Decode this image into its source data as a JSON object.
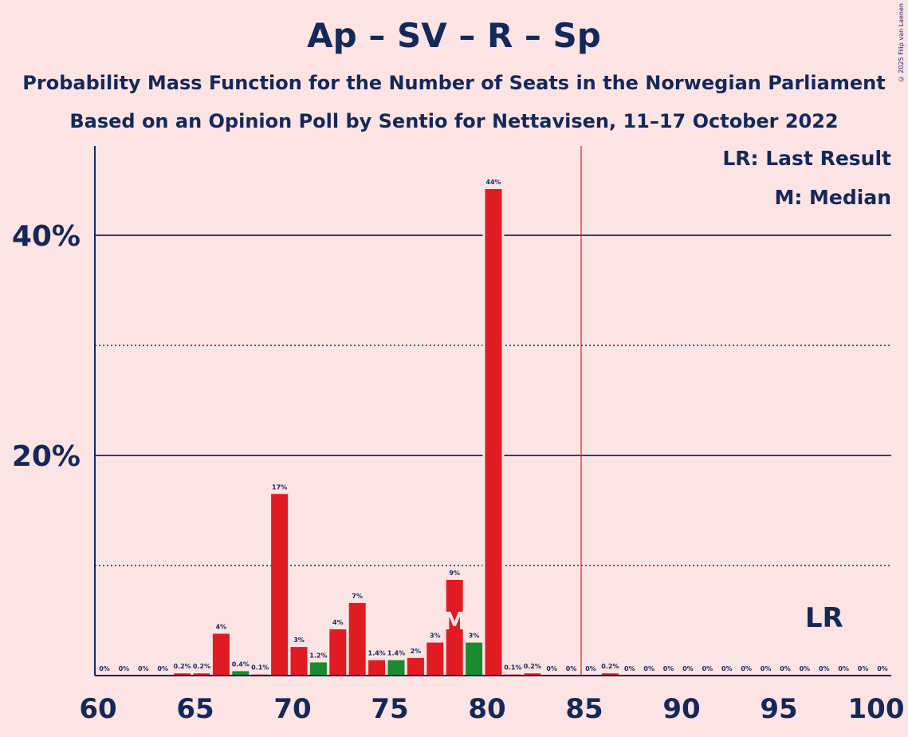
{
  "title": "Ap – SV – R – Sp",
  "subtitle1": "Probability Mass Function for the Number of Seats in the Norwegian Parliament",
  "subtitle2": "Based on an Opinion Poll by Sentio for Nettavisen, 11–17 October 2022",
  "copyright": "© 2025 Filip van Laenen",
  "legend": {
    "last_result": "LR: Last Result",
    "median": "M: Median"
  },
  "colors": {
    "background": "#fde4e4",
    "text": "#14285a",
    "bar": "#e01b22",
    "bar_alt": "#1a8a2e",
    "majority_line": "#e01b22"
  },
  "chart_data": {
    "type": "bar",
    "xlim": [
      60,
      100
    ],
    "ylim": [
      0,
      48
    ],
    "x_ticks": [
      60,
      65,
      70,
      75,
      80,
      85,
      90,
      95,
      100
    ],
    "y_ticks_labeled": [
      {
        "value": 20,
        "label": "20%"
      },
      {
        "value": 40,
        "label": "40%"
      }
    ],
    "y_ticks_dotted": [
      10,
      30
    ],
    "majority_line_x": 85,
    "median_x": 78,
    "median_label": "M",
    "last_result_x": 97,
    "last_result_label": "LR",
    "bars": [
      {
        "x": 60,
        "value": 0,
        "label": "0%",
        "green": false
      },
      {
        "x": 61,
        "value": 0,
        "label": "0%",
        "green": false
      },
      {
        "x": 62,
        "value": 0,
        "label": "0%",
        "green": false
      },
      {
        "x": 63,
        "value": 0,
        "label": "0%",
        "green": false
      },
      {
        "x": 64,
        "value": 0.2,
        "label": "0.2%",
        "green": false
      },
      {
        "x": 65,
        "value": 0.2,
        "label": "0.2%",
        "green": false
      },
      {
        "x": 66,
        "value": 3.8,
        "label": "4%",
        "green": false
      },
      {
        "x": 67,
        "value": 0.4,
        "label": "0.4%",
        "green": true
      },
      {
        "x": 68,
        "value": 0.1,
        "label": "0.1%",
        "green": false
      },
      {
        "x": 69,
        "value": 16.5,
        "label": "17%",
        "green": false
      },
      {
        "x": 70,
        "value": 2.6,
        "label": "3%",
        "green": false
      },
      {
        "x": 71,
        "value": 1.2,
        "label": "1.2%",
        "green": true
      },
      {
        "x": 72,
        "value": 4.2,
        "label": "4%",
        "green": false
      },
      {
        "x": 73,
        "value": 6.6,
        "label": "7%",
        "green": false
      },
      {
        "x": 74,
        "value": 1.4,
        "label": "1.4%",
        "green": false
      },
      {
        "x": 75,
        "value": 1.4,
        "label": "1.4%",
        "green": true
      },
      {
        "x": 76,
        "value": 1.6,
        "label": "2%",
        "green": false
      },
      {
        "x": 77,
        "value": 3.0,
        "label": "3%",
        "green": false
      },
      {
        "x": 78,
        "value": 8.7,
        "label": "9%",
        "green": false
      },
      {
        "x": 79,
        "value": 3.0,
        "label": "3%",
        "green": true
      },
      {
        "x": 80,
        "value": 44.2,
        "label": "44%",
        "green": false
      },
      {
        "x": 81,
        "value": 0.1,
        "label": "0.1%",
        "green": false
      },
      {
        "x": 82,
        "value": 0.2,
        "label": "0.2%",
        "green": false
      },
      {
        "x": 83,
        "value": 0,
        "label": "0%",
        "green": false
      },
      {
        "x": 84,
        "value": 0,
        "label": "0%",
        "green": false
      },
      {
        "x": 85,
        "value": 0,
        "label": "0%",
        "green": false
      },
      {
        "x": 86,
        "value": 0.2,
        "label": "0.2%",
        "green": false
      },
      {
        "x": 87,
        "value": 0,
        "label": "0%",
        "green": false
      },
      {
        "x": 88,
        "value": 0,
        "label": "0%",
        "green": false
      },
      {
        "x": 89,
        "value": 0,
        "label": "0%",
        "green": false
      },
      {
        "x": 90,
        "value": 0,
        "label": "0%",
        "green": false
      },
      {
        "x": 91,
        "value": 0,
        "label": "0%",
        "green": false
      },
      {
        "x": 92,
        "value": 0,
        "label": "0%",
        "green": false
      },
      {
        "x": 93,
        "value": 0,
        "label": "0%",
        "green": false
      },
      {
        "x": 94,
        "value": 0,
        "label": "0%",
        "green": false
      },
      {
        "x": 95,
        "value": 0,
        "label": "0%",
        "green": false
      },
      {
        "x": 96,
        "value": 0,
        "label": "0%",
        "green": false
      },
      {
        "x": 97,
        "value": 0,
        "label": "0%",
        "green": false
      },
      {
        "x": 98,
        "value": 0,
        "label": "0%",
        "green": false
      },
      {
        "x": 99,
        "value": 0,
        "label": "0%",
        "green": false
      },
      {
        "x": 100,
        "value": 0,
        "label": "0%",
        "green": false
      }
    ]
  }
}
